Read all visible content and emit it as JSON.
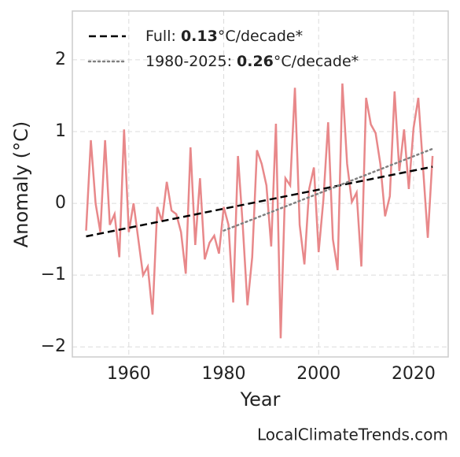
{
  "chart_data": {
    "type": "line",
    "xlabel": "Year",
    "ylabel": "Anomaly (°C)",
    "watermark": "LocalClimateTrends.com",
    "x": [
      1951,
      1952,
      1953,
      1954,
      1955,
      1956,
      1957,
      1958,
      1959,
      1960,
      1961,
      1962,
      1963,
      1964,
      1965,
      1966,
      1967,
      1968,
      1969,
      1970,
      1971,
      1972,
      1973,
      1974,
      1975,
      1976,
      1977,
      1978,
      1979,
      1980,
      1981,
      1982,
      1983,
      1984,
      1985,
      1986,
      1987,
      1988,
      1989,
      1990,
      1991,
      1992,
      1993,
      1994,
      1995,
      1996,
      1997,
      1998,
      1999,
      2000,
      2001,
      2002,
      2003,
      2004,
      2005,
      2006,
      2007,
      2008,
      2009,
      2010,
      2011,
      2012,
      2013,
      2014,
      2015,
      2016,
      2017,
      2018,
      2019,
      2020,
      2021,
      2022,
      2023,
      2024
    ],
    "series": [
      {
        "color": "#e8888a",
        "style": "solid",
        "values": [
          -0.38,
          0.88,
          0.0,
          -0.4,
          0.88,
          -0.3,
          -0.15,
          -0.75,
          1.03,
          -0.4,
          0.0,
          -0.5,
          -1.0,
          -0.88,
          -1.55,
          -0.05,
          -0.25,
          0.3,
          -0.1,
          -0.15,
          -0.4,
          -0.98,
          0.78,
          -0.58,
          0.35,
          -0.78,
          -0.55,
          -0.45,
          -0.7,
          -0.05,
          -0.3,
          -1.38,
          0.66,
          -0.3,
          -1.42,
          -0.75,
          0.74,
          0.55,
          0.25,
          -0.6,
          1.11,
          -1.88,
          0.35,
          0.25,
          1.61,
          -0.3,
          -0.85,
          0.2,
          0.5,
          -0.68,
          0.05,
          1.13,
          -0.5,
          -0.93,
          1.67,
          0.55,
          0.02,
          0.15,
          -0.88,
          1.47,
          1.1,
          0.98,
          0.55,
          -0.18,
          0.1,
          1.56,
          0.45,
          1.03,
          0.2,
          1.05,
          1.47,
          0.5,
          -0.48,
          0.66
        ]
      },
      {
        "name": "Full:",
        "rate": 0.13,
        "unit": "°C/decade*",
        "color": "#000000",
        "style": "dashed",
        "x": [
          1951,
          2024
        ],
        "values": [
          -0.46,
          0.51
        ]
      },
      {
        "name": "1980-2025:",
        "rate": 0.26,
        "unit": "°C/decade*",
        "color": "#808080",
        "style": "dotted",
        "x": [
          1980,
          2024
        ],
        "values": [
          -0.38,
          0.76
        ]
      }
    ],
    "xlim": [
      1948.1,
      2027.3
    ],
    "xticks": [
      1960,
      1980,
      2000,
      2020
    ],
    "ylim": [
      -2.14,
      2.68
    ],
    "yticks": [
      {
        "value": -2,
        "label": "−2"
      },
      {
        "value": -1,
        "label": "−1"
      },
      0,
      1,
      2
    ],
    "grid": true,
    "legend": "upper left"
  }
}
